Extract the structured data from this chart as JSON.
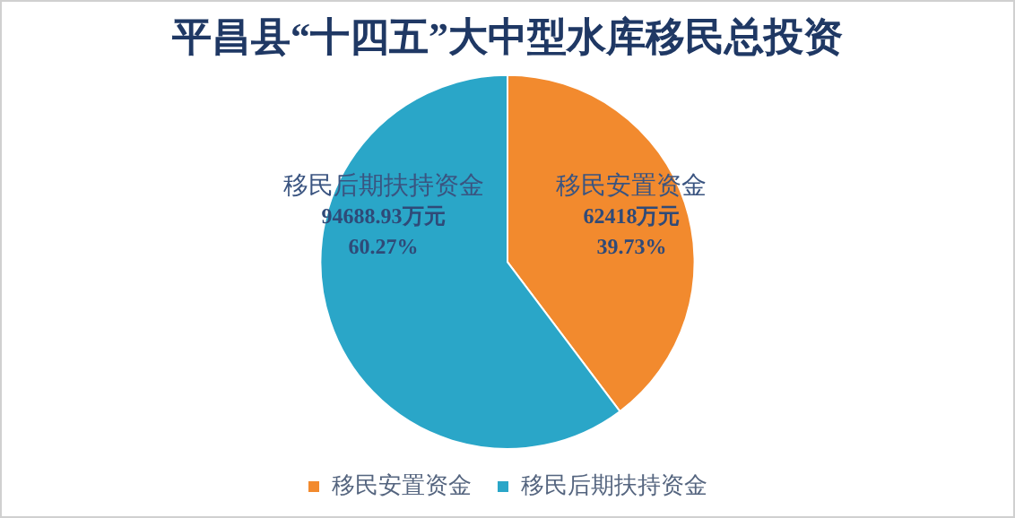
{
  "chart_data": {
    "type": "pie",
    "title": "平昌县“十四五”大中型水库移民总投资",
    "categories": [
      "移民安置资金",
      "移民后期扶持资金"
    ],
    "values": [
      62418,
      94688.93
    ],
    "colors": [
      "#f28a2e",
      "#2aa6c8"
    ],
    "value_labels": [
      "62418万元\n39.73%",
      "94688.93万元\n60.27%"
    ],
    "legend": "bottom"
  }
}
